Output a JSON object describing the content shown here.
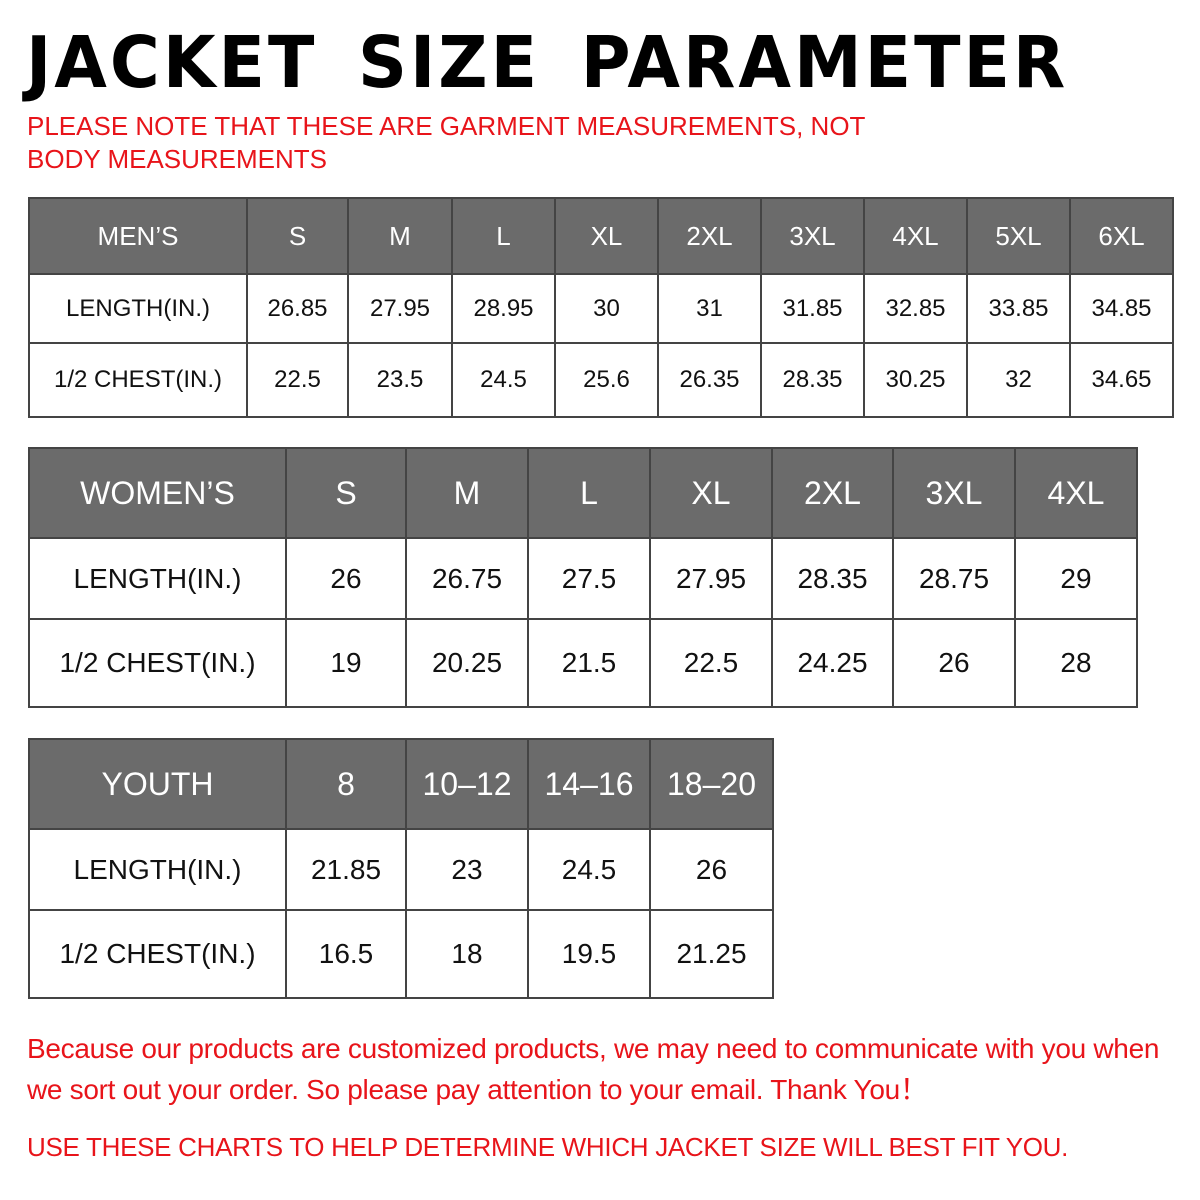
{
  "title": "JACKET SIZE PARAMETER",
  "subtitle": "PLEASE NOTE THAT THESE ARE GARMENT MEASUREMENTS, NOT BODY MEASUREMENTS",
  "colors": {
    "header_bg": "#6b6b6b",
    "accent_red": "#e8141a"
  },
  "tables": {
    "men": {
      "header": [
        "MEN’S",
        "S",
        "M",
        "L",
        "XL",
        "2XL",
        "3XL",
        "4XL",
        "5XL",
        "6XL"
      ],
      "rows": [
        [
          "LENGTH(IN.)",
          "26.85",
          "27.95",
          "28.95",
          "30",
          "31",
          "31.85",
          "32.85",
          "33.85",
          "34.85"
        ],
        [
          "1/2 CHEST(IN.)",
          "22.5",
          "23.5",
          "24.5",
          "25.6",
          "26.35",
          "28.35",
          "30.25",
          "32",
          "34.65"
        ]
      ]
    },
    "women": {
      "header": [
        "WOMEN’S",
        "S",
        "M",
        "L",
        "XL",
        "2XL",
        "3XL",
        "4XL"
      ],
      "rows": [
        [
          "LENGTH(IN.)",
          "26",
          "26.75",
          "27.5",
          "27.95",
          "28.35",
          "28.75",
          "29"
        ],
        [
          "1/2 CHEST(IN.)",
          "19",
          "20.25",
          "21.5",
          "22.5",
          "24.25",
          "26",
          "28"
        ]
      ]
    },
    "youth": {
      "header": [
        "YOUTH",
        "8",
        "10–12",
        "14–16",
        "18–20"
      ],
      "rows": [
        [
          "LENGTH(IN.)",
          "21.85",
          "23",
          "24.5",
          "26"
        ],
        [
          "1/2 CHEST(IN.)",
          "16.5",
          "18",
          "19.5",
          "21.25"
        ]
      ]
    }
  },
  "notice": "Because our products are customized products, we may need to communicate with you when we sort out your order. So please pay attention to your email. Thank You！",
  "usage_note": "USE THESE CHARTS TO HELP DETERMINE WHICH JACKET SIZE WILL BEST FIT YOU."
}
